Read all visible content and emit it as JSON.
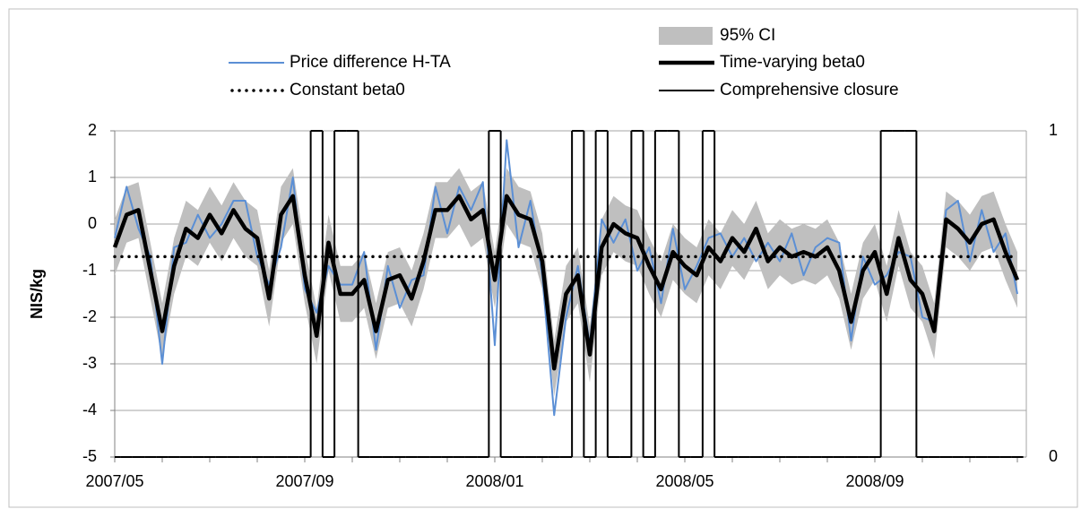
{
  "chart_data": {
    "type": "line",
    "y_label": "NIS/kg",
    "categories": [
      "2007/05",
      null,
      null,
      null,
      null,
      null,
      null,
      null,
      null,
      null,
      null,
      null,
      null,
      null,
      null,
      null,
      "2007/09",
      null,
      null,
      null,
      null,
      null,
      null,
      null,
      null,
      null,
      null,
      null,
      null,
      null,
      null,
      null,
      "2008/01",
      null,
      null,
      null,
      null,
      null,
      null,
      null,
      null,
      null,
      null,
      null,
      null,
      null,
      null,
      null,
      "2008/05",
      null,
      null,
      null,
      null,
      null,
      null,
      null,
      null,
      null,
      null,
      null,
      null,
      null,
      null,
      null,
      "2008/09",
      null,
      null,
      null,
      null,
      null,
      null,
      null,
      null,
      null,
      null,
      null,
      null
    ],
    "ylim": [
      -5,
      2
    ],
    "yticks": [
      -5,
      -4,
      -3,
      -2,
      -1,
      0,
      1,
      2
    ],
    "y2lim": [
      0,
      1
    ],
    "y2ticks": [
      0,
      1
    ],
    "grid": true,
    "series": [
      {
        "name": "95% CI",
        "color": "#bfbfbf",
        "kind": "band",
        "lower": [
          -1.1,
          -0.4,
          -0.3,
          -1.6,
          -2.9,
          -1.5,
          -0.7,
          -0.9,
          -0.4,
          -0.8,
          -0.3,
          -0.7,
          -0.9,
          -2.2,
          -0.4,
          0.0,
          -1.7,
          -3.0,
          -1.0,
          -2.1,
          -2.1,
          -1.8,
          -2.9,
          -1.8,
          -1.7,
          -2.2,
          -1.4,
          -0.3,
          -0.3,
          0.0,
          -0.5,
          -0.3,
          -1.8,
          0.0,
          -0.4,
          -0.5,
          -1.4,
          -3.7,
          -2.1,
          -1.7,
          -3.4,
          -1.1,
          -0.6,
          -0.8,
          -0.9,
          -1.5,
          -2.0,
          -1.2,
          -1.5,
          -1.7,
          -1.1,
          -1.4,
          -0.9,
          -1.2,
          -0.7,
          -1.4,
          -1.1,
          -1.3,
          -1.2,
          -1.3,
          -1.1,
          -1.6,
          -2.7,
          -1.6,
          -1.2,
          -2.1,
          -0.9,
          -1.8,
          -2.1,
          -2.9,
          -0.5,
          -0.7,
          -1.0,
          -0.6,
          -0.5,
          -1.2,
          -1.8
        ],
        "upper": [
          0.1,
          0.8,
          0.9,
          -0.4,
          -1.7,
          -0.3,
          0.5,
          0.3,
          0.8,
          0.4,
          0.9,
          0.5,
          0.3,
          -1.0,
          0.8,
          1.2,
          -0.5,
          -1.8,
          0.2,
          -0.9,
          -0.9,
          -0.6,
          -1.7,
          -0.6,
          -0.5,
          -1.0,
          -0.2,
          0.9,
          0.9,
          1.2,
          0.7,
          0.9,
          -0.6,
          1.2,
          0.8,
          0.7,
          -0.2,
          -2.5,
          -0.9,
          -0.5,
          -2.2,
          0.1,
          0.6,
          0.4,
          0.3,
          -0.3,
          -0.8,
          0.0,
          -0.3,
          -0.5,
          0.1,
          -0.2,
          0.3,
          0.0,
          0.5,
          -0.2,
          0.1,
          -0.1,
          0.0,
          -0.1,
          0.1,
          -0.4,
          -1.5,
          -0.4,
          0.0,
          -0.9,
          0.3,
          -0.6,
          -0.9,
          -1.7,
          0.7,
          0.5,
          0.2,
          0.6,
          0.7,
          0.0,
          -0.6
        ]
      },
      {
        "name": "Price difference H-TA",
        "color": "#5b8fd5",
        "width": 2,
        "values": [
          -0.3,
          0.8,
          -0.1,
          -0.7,
          -3.0,
          -0.5,
          -0.4,
          0.2,
          -0.3,
          0.0,
          0.5,
          0.5,
          -0.7,
          -1.3,
          -0.5,
          1.0,
          -1.4,
          -1.9,
          -0.9,
          -1.3,
          -1.3,
          -0.6,
          -2.7,
          -0.9,
          -1.8,
          -1.2,
          -1.1,
          0.8,
          -0.2,
          0.8,
          0.3,
          0.9,
          -2.6,
          1.8,
          -0.5,
          0.5,
          -1.1,
          -4.1,
          -2.0,
          -0.9,
          -2.6,
          0.1,
          -0.4,
          0.1,
          -1.0,
          -0.5,
          -1.7,
          -0.1,
          -1.4,
          -0.9,
          -0.3,
          -0.2,
          -0.7,
          -0.3,
          -0.8,
          -0.4,
          -0.8,
          -0.2,
          -1.1,
          -0.5,
          -0.3,
          -0.4,
          -2.5,
          -0.7,
          -1.3,
          -1.1,
          -0.6,
          -0.7,
          -2.0,
          -2.1,
          0.3,
          0.5,
          -0.8,
          0.3,
          -0.6,
          -0.2,
          -1.5
        ]
      },
      {
        "name": "Time-varying beta0",
        "color": "#000000",
        "width": 4.5,
        "values": [
          -0.5,
          0.2,
          0.3,
          -1.0,
          -2.3,
          -0.9,
          -0.1,
          -0.3,
          0.2,
          -0.2,
          0.3,
          -0.1,
          -0.3,
          -1.6,
          0.2,
          0.6,
          -1.1,
          -2.4,
          -0.4,
          -1.5,
          -1.5,
          -1.2,
          -2.3,
          -1.2,
          -1.1,
          -1.6,
          -0.8,
          0.3,
          0.3,
          0.6,
          0.1,
          0.3,
          -1.2,
          0.6,
          0.2,
          0.1,
          -0.8,
          -3.1,
          -1.5,
          -1.1,
          -2.8,
          -0.5,
          0.0,
          -0.2,
          -0.3,
          -0.9,
          -1.4,
          -0.6,
          -0.9,
          -1.1,
          -0.5,
          -0.8,
          -0.3,
          -0.6,
          -0.1,
          -0.8,
          -0.5,
          -0.7,
          -0.6,
          -0.7,
          -0.5,
          -1.0,
          -2.1,
          -1.0,
          -0.6,
          -1.5,
          -0.3,
          -1.2,
          -1.5,
          -2.3,
          0.1,
          -0.1,
          -0.4,
          0.0,
          0.1,
          -0.6,
          -1.2
        ]
      },
      {
        "name": "Constant beta0",
        "color": "#000000",
        "width": 3.5,
        "dash": "dotted",
        "values": [
          -0.7,
          -0.7,
          -0.7,
          -0.7,
          -0.7,
          -0.7,
          -0.7,
          -0.7,
          -0.7,
          -0.7,
          -0.7,
          -0.7,
          -0.7,
          -0.7,
          -0.7,
          -0.7,
          -0.7,
          -0.7,
          -0.7,
          -0.7,
          -0.7,
          -0.7,
          -0.7,
          -0.7,
          -0.7,
          -0.7,
          -0.7,
          -0.7,
          -0.7,
          -0.7,
          -0.7,
          -0.7,
          -0.7,
          -0.7,
          -0.7,
          -0.7,
          -0.7,
          -0.7,
          -0.7,
          -0.7,
          -0.7,
          -0.7,
          -0.7,
          -0.7,
          -0.7,
          -0.7,
          -0.7,
          -0.7,
          -0.7,
          -0.7,
          -0.7,
          -0.7,
          -0.7,
          -0.7,
          -0.7,
          -0.7,
          -0.7,
          -0.7,
          -0.7,
          -0.7,
          -0.7,
          -0.7,
          -0.7,
          -0.7,
          -0.7,
          -0.7,
          -0.7,
          -0.7,
          -0.7,
          -0.7,
          -0.7,
          -0.7,
          -0.7,
          -0.7,
          -0.7,
          -0.7,
          -0.7
        ]
      },
      {
        "name": "Comprehensive closure",
        "color": "#000000",
        "width": 2,
        "axis": "y2",
        "kind": "step",
        "values": [
          0,
          0,
          0,
          0,
          0,
          0,
          0,
          0,
          0,
          0,
          0,
          0,
          0,
          0,
          0,
          0,
          0,
          1,
          0,
          1,
          1,
          0,
          0,
          0,
          0,
          0,
          0,
          0,
          0,
          0,
          0,
          0,
          1,
          0,
          0,
          0,
          0,
          0,
          0,
          1,
          0,
          1,
          0,
          0,
          1,
          0,
          1,
          1,
          0,
          0,
          1,
          0,
          0,
          0,
          0,
          0,
          0,
          0,
          0,
          0,
          0,
          0,
          0,
          0,
          0,
          1,
          1,
          1,
          0,
          0,
          0,
          0,
          0,
          0,
          0,
          0,
          0
        ]
      }
    ]
  }
}
